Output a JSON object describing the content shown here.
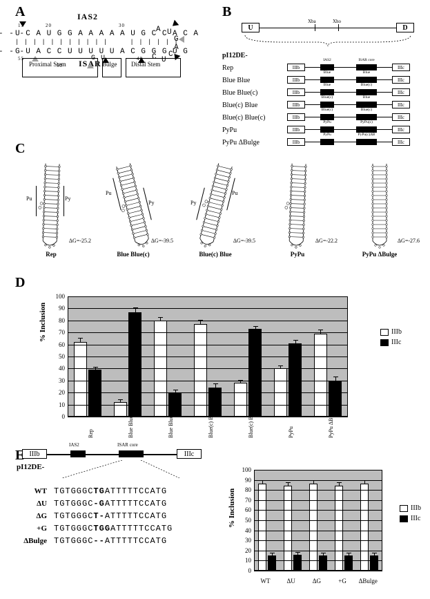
{
  "A": {
    "ias2_label": "IAS2",
    "isar_label": "ISAR",
    "top_seq": "U C A U G G A A A A A U   G C C A C A",
    "bot_seq": "G U A C C U U U U U A   C G G G U G",
    "pos15": "15",
    "pos20": "20",
    "pos30": "30",
    "pos55": "55",
    "pos50": "50",
    "pos40": "40",
    "loop_a1": "A",
    "loop_u": "U",
    "loop_g": "G",
    "loop_a2": "A",
    "loop_c": "C",
    "loop_u2": "U",
    "loop_c2": "C",
    "bulge_top": "",
    "bulge_bot": "G U",
    "struct_prox": "Proximal Stem",
    "struct_bulge": "Bulge",
    "struct_dist": "Distal Stem"
  },
  "B": {
    "U": "U",
    "D": "D",
    "xba": "Xba",
    "xho": "Xho",
    "head": "pI12DE-",
    "names": [
      "Rep",
      "Blue Blue",
      "Blue Blue(c)",
      "Blue(c) Blue",
      "Blue(c) Blue(c)",
      "PyPu",
      "PyPu ΔBulge"
    ],
    "ex_left": "IIIb",
    "ex_right": "IIIc",
    "ias2": "IAS2",
    "isarcore": "ISAR core",
    "blk_labels": [
      [
        "IAS2",
        "ISAR core"
      ],
      [
        "Blue",
        "Blue"
      ],
      [
        "Blue",
        "Blue(c)"
      ],
      [
        "Blue(c)",
        "Blue"
      ],
      [
        "Blue(c)",
        "Blue(c)"
      ],
      [
        "PyPu",
        "PyPu(c)"
      ],
      [
        "PyPu",
        "PyPu(c)ΔB"
      ]
    ]
  },
  "C": {
    "names": [
      "Rep",
      "Blue Blue(c)",
      "Blue(c) Blue",
      "PyPu",
      "PyPu ΔBulge"
    ],
    "dg": [
      "ΔG=-25.2",
      "ΔG=-39.5",
      "ΔG=-39.5",
      "ΔG=-22.2",
      "ΔG=-27.6"
    ],
    "pu": "Pu",
    "py": "Py"
  },
  "D": {
    "ylabel": "% Inclusion",
    "legend_w": "IIIb",
    "legend_k": "IIIc",
    "cats": [
      "Rep",
      "Blue Blue",
      "Blue Blue(c)",
      "Blue(c) Blue",
      "Blue(c) Blue(c)",
      "PyPu",
      "PyPu ΔBulge"
    ],
    "IIIb": [
      62,
      12,
      80,
      77,
      28,
      40,
      69
    ],
    "IIIc": [
      39,
      87,
      20,
      24,
      73,
      61,
      30
    ],
    "IIIb_err": [
      3,
      2,
      2,
      3,
      2,
      2,
      3
    ],
    "IIIc_err": [
      2,
      3,
      2,
      3,
      2,
      2,
      3
    ],
    "ymax": 100,
    "ystep": 10,
    "bar_white": "#ffffff",
    "bar_black": "#000000",
    "bg": "#bdbdbd"
  },
  "E": {
    "name": "pI12DE-",
    "map_ex_left": "IIIb",
    "map_ex_right": "IIIc",
    "ias2": "IAS2",
    "isarcore": "ISAR core",
    "rows": [
      {
        "lab": "WT",
        "seq": "TGTGGGC<b>TG</b>ATTTTTCCATG"
      },
      {
        "lab": "ΔU",
        "seq": "TGTGGGC<b>-G</b>ATTTTTCCATG"
      },
      {
        "lab": "ΔG",
        "seq": "TGTGGGC<b>T-</b>ATTTTTCCATG"
      },
      {
        "lab": "+G",
        "seq": "TGTGGGC<b>TGG</b>ATTTTTCCATG"
      },
      {
        "lab": "ΔBulge",
        "seq": "TGTGGGC<b>--</b>ATTTTTCCATG"
      }
    ],
    "ylabel": "% Inclusion",
    "legend_w": "IIIb",
    "legend_k": "IIIc",
    "cats": [
      "WT",
      "ΔU",
      "ΔG",
      "+G",
      "ΔBulge"
    ],
    "IIIb": [
      86,
      84,
      86,
      84,
      86
    ],
    "IIIc": [
      15,
      16,
      15,
      15,
      15
    ],
    "IIIb_err": [
      3,
      3,
      3,
      3,
      3
    ],
    "IIIc_err": [
      2,
      2,
      2,
      2,
      2
    ],
    "ymax": 100,
    "ystep": 10
  }
}
